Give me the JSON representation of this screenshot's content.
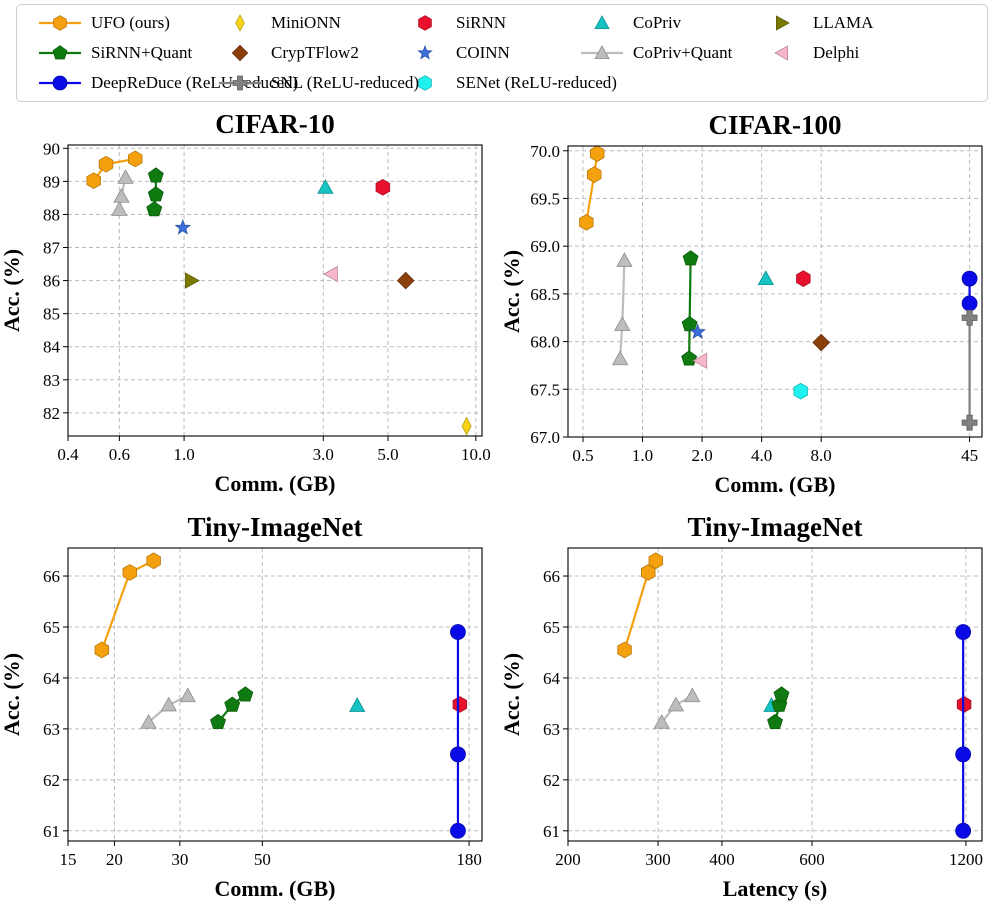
{
  "legend": [
    {
      "label": "UFO (ours)",
      "color": "#f5a00f",
      "marker": "hexagon",
      "line": true
    },
    {
      "label": "MiniONN",
      "color": "#f7d417",
      "marker": "thin_diamond",
      "line": false
    },
    {
      "label": "SiRNN",
      "color": "#e8112d",
      "marker": "hexagon",
      "line": false
    },
    {
      "label": "CoPriv",
      "color": "#17c2c2",
      "marker": "triangle_up",
      "line": false
    },
    {
      "label": "LLAMA",
      "color": "#7a7a00",
      "marker": "triangle_right",
      "line": false
    },
    {
      "label": "SiRNN+Quant",
      "color": "#0f7a0f",
      "marker": "pentagon",
      "line": true
    },
    {
      "label": "CrypTFlow2",
      "color": "#8b3f0a",
      "marker": "diamond",
      "line": false
    },
    {
      "label": "COINN",
      "color": "#3d6fdc",
      "marker": "star",
      "line": false
    },
    {
      "label": "CoPriv+Quant",
      "color": "#bdbdbd",
      "marker": "triangle_up",
      "line": true
    },
    {
      "label": "Delphi",
      "color": "#f7b6c9",
      "marker": "triangle_left",
      "line": false
    },
    {
      "label": "DeepReDuce (ReLU-reduced)",
      "color": "#0a0ae6",
      "marker": "circle",
      "line": true
    },
    {
      "label": "SNL (ReLU-reduced)",
      "color": "#808080",
      "marker": "plus",
      "line": true
    },
    {
      "label": "SENet (ReLU-reduced)",
      "color": "#1ff0f0",
      "marker": "hexagon",
      "line": false
    }
  ],
  "chart_data": [
    {
      "type": "scatter",
      "title": "CIFAR-10",
      "xlabel": "Comm. (GB)",
      "ylabel": "Acc. (%)",
      "xscale": "log",
      "xlim": [
        0.4,
        10.5
      ],
      "ylim": [
        81.3,
        90.1
      ],
      "xticks": [
        0.4,
        0.6,
        1.0,
        3.0,
        5.0,
        10.0
      ],
      "xticklabels": [
        "0.4",
        "0.6",
        "1.0",
        "3.0",
        "5.0",
        "10.0"
      ],
      "yticks": [
        82,
        83,
        84,
        85,
        86,
        87,
        88,
        89,
        90
      ],
      "yticklabels": [
        "82",
        "83",
        "84",
        "85",
        "86",
        "87",
        "88",
        "89",
        "90"
      ],
      "series": [
        {
          "name": "UFO (ours)",
          "x": [
            0.49,
            0.54,
            0.68
          ],
          "y": [
            89.02,
            89.52,
            89.68
          ]
        },
        {
          "name": "CoPriv+Quant",
          "x": [
            0.6,
            0.61,
            0.63
          ],
          "y": [
            88.15,
            88.55,
            89.12
          ]
        },
        {
          "name": "SiRNN+Quant",
          "x": [
            0.79,
            0.8,
            0.8
          ],
          "y": [
            88.15,
            88.6,
            89.17
          ]
        },
        {
          "name": "COINN",
          "x": [
            0.99
          ],
          "y": [
            87.6
          ]
        },
        {
          "name": "LLAMA",
          "x": [
            1.06
          ],
          "y": [
            86.0
          ]
        },
        {
          "name": "CoPriv",
          "x": [
            3.05
          ],
          "y": [
            88.82
          ]
        },
        {
          "name": "SiRNN",
          "x": [
            4.8
          ],
          "y": [
            88.82
          ]
        },
        {
          "name": "Delphi",
          "x": [
            3.2
          ],
          "y": [
            86.2
          ]
        },
        {
          "name": "CrypTFlow2",
          "x": [
            5.75
          ],
          "y": [
            86.0
          ]
        },
        {
          "name": "MiniONN",
          "x": [
            9.3
          ],
          "y": [
            81.6
          ]
        }
      ]
    },
    {
      "type": "scatter",
      "title": "CIFAR-100",
      "xlabel": "Comm. (GB)",
      "ylabel": "Acc. (%)",
      "xscale": "log",
      "xlim": [
        0.42,
        52
      ],
      "ylim": [
        67.0,
        70.05
      ],
      "xticks": [
        0.5,
        1.0,
        2.0,
        4.0,
        8.0,
        45
      ],
      "xticklabels": [
        "0.5",
        "1.0",
        "2.0",
        "4.0",
        "8.0",
        "45"
      ],
      "yticks": [
        67.0,
        67.5,
        68.0,
        68.5,
        69.0,
        69.5,
        70.0
      ],
      "yticklabels": [
        "67.0",
        "67.5",
        "68.0",
        "68.5",
        "69.0",
        "69.5",
        "70.0"
      ],
      "series": [
        {
          "name": "UFO (ours)",
          "x": [
            0.52,
            0.57,
            0.59
          ],
          "y": [
            69.25,
            69.75,
            69.97
          ]
        },
        {
          "name": "CoPriv+Quant",
          "x": [
            0.77,
            0.79,
            0.81
          ],
          "y": [
            67.82,
            68.18,
            68.85
          ]
        },
        {
          "name": "SiRNN+Quant",
          "x": [
            1.72,
            1.73,
            1.75
          ],
          "y": [
            67.82,
            68.18,
            68.87
          ]
        },
        {
          "name": "COINN",
          "x": [
            1.9
          ],
          "y": [
            68.1
          ]
        },
        {
          "name": "Delphi",
          "x": [
            1.97
          ],
          "y": [
            67.8
          ]
        },
        {
          "name": "CoPriv",
          "x": [
            4.2
          ],
          "y": [
            68.66
          ]
        },
        {
          "name": "SiRNN",
          "x": [
            6.5
          ],
          "y": [
            68.66
          ]
        },
        {
          "name": "SENet (ReLU-reduced)",
          "x": [
            6.3
          ],
          "y": [
            67.48
          ]
        },
        {
          "name": "CrypTFlow2",
          "x": [
            8.0
          ],
          "y": [
            67.99
          ]
        },
        {
          "name": "DeepReDuce (ReLU-reduced)",
          "x": [
            45,
            45
          ],
          "y": [
            68.4,
            68.66
          ]
        },
        {
          "name": "SNL (ReLU-reduced)",
          "x": [
            45,
            45
          ],
          "y": [
            67.15,
            68.25
          ]
        }
      ]
    },
    {
      "type": "scatter",
      "title": "Tiny-ImageNet",
      "xlabel": "Comm. (GB)",
      "ylabel": "Acc. (%)",
      "xscale": "log",
      "xlim": [
        15,
        195
      ],
      "ylim": [
        60.8,
        66.55
      ],
      "xticks": [
        15,
        20,
        30,
        50,
        180
      ],
      "xticklabels": [
        "15",
        "20",
        "30",
        "50",
        "180"
      ],
      "yticks": [
        61,
        62,
        63,
        64,
        65,
        66
      ],
      "yticklabels": [
        "61",
        "62",
        "63",
        "64",
        "65",
        "66"
      ],
      "series": [
        {
          "name": "UFO (ours)",
          "x": [
            18.5,
            22.0,
            25.5
          ],
          "y": [
            64.55,
            66.07,
            66.3
          ]
        },
        {
          "name": "CoPriv+Quant",
          "x": [
            24.7,
            28.0,
            31.5
          ],
          "y": [
            63.13,
            63.47,
            63.65
          ]
        },
        {
          "name": "SiRNN+Quant",
          "x": [
            38.0,
            41.5,
            45.0
          ],
          "y": [
            63.13,
            63.47,
            63.67
          ]
        },
        {
          "name": "CoPriv",
          "x": [
            90
          ],
          "y": [
            63.46
          ]
        },
        {
          "name": "SiRNN",
          "x": [
            170
          ],
          "y": [
            63.48
          ]
        },
        {
          "name": "DeepReDuce (ReLU-reduced)",
          "x": [
            168,
            168,
            168
          ],
          "y": [
            61.0,
            62.5,
            64.9
          ]
        }
      ]
    },
    {
      "type": "scatter",
      "title": "Tiny-ImageNet",
      "xlabel": "Latency (s)",
      "ylabel": "Acc. (%)",
      "xscale": "log",
      "xlim": [
        200,
        1290
      ],
      "ylim": [
        60.8,
        66.55
      ],
      "xticks": [
        200,
        300,
        400,
        600,
        1200
      ],
      "xticklabels": [
        "200",
        "300",
        "400",
        "600",
        "1200"
      ],
      "yticks": [
        61,
        62,
        63,
        64,
        65,
        66
      ],
      "yticklabels": [
        "61",
        "62",
        "63",
        "64",
        "65",
        "66"
      ],
      "series": [
        {
          "name": "UFO (ours)",
          "x": [
            258,
            287,
            297
          ],
          "y": [
            64.55,
            66.07,
            66.3
          ]
        },
        {
          "name": "CoPriv+Quant",
          "x": [
            305,
            325,
            350
          ],
          "y": [
            63.13,
            63.47,
            63.65
          ]
        },
        {
          "name": "CoPriv",
          "x": [
            500
          ],
          "y": [
            63.46
          ]
        },
        {
          "name": "SiRNN+Quant",
          "x": [
            508,
            518,
            523
          ],
          "y": [
            63.13,
            63.47,
            63.67
          ]
        },
        {
          "name": "SiRNN",
          "x": [
            1190
          ],
          "y": [
            63.48
          ]
        },
        {
          "name": "DeepReDuce (ReLU-reduced)",
          "x": [
            1185,
            1185,
            1185
          ],
          "y": [
            61.0,
            62.5,
            64.9
          ]
        }
      ]
    }
  ]
}
